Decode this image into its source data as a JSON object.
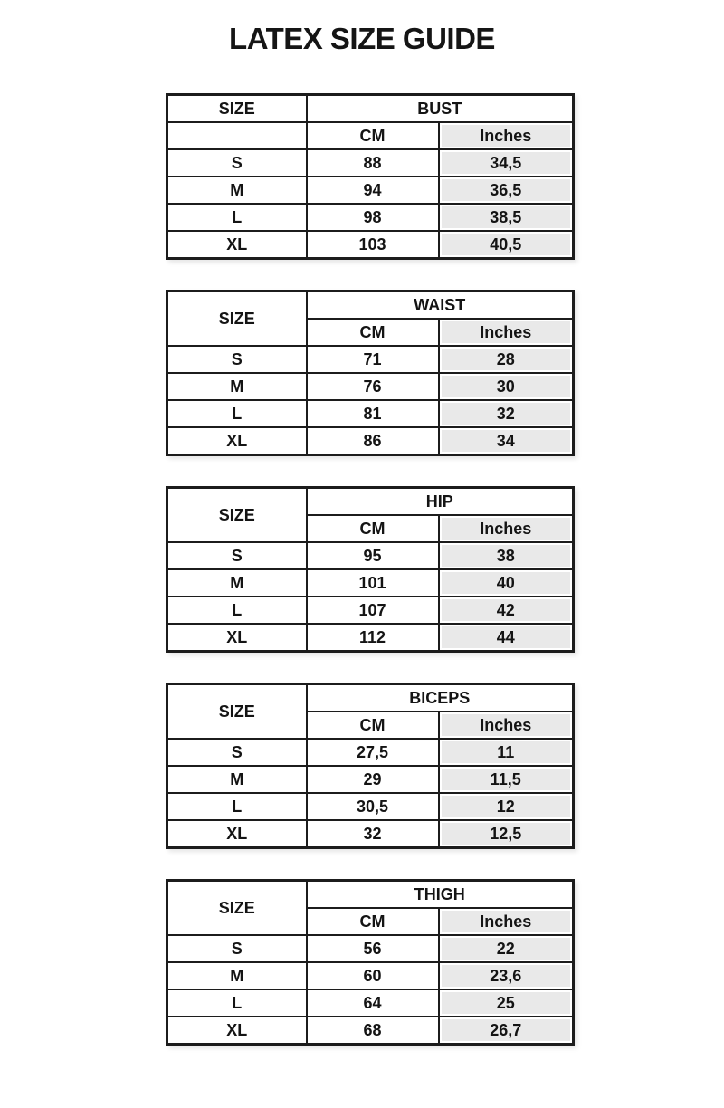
{
  "page": {
    "title": "LATEX SIZE GUIDE"
  },
  "table_labels": {
    "size": "SIZE",
    "cm": "CM",
    "inches": "Inches"
  },
  "tables": [
    {
      "measure": "BUST",
      "rows": [
        {
          "size": "S",
          "cm": "88",
          "inches": "34,5"
        },
        {
          "size": "M",
          "cm": "94",
          "inches": "36,5"
        },
        {
          "size": "L",
          "cm": "98",
          "inches": "38,5"
        },
        {
          "size": "XL",
          "cm": "103",
          "inches": "40,5"
        }
      ]
    },
    {
      "measure": "WAIST",
      "rows": [
        {
          "size": "S",
          "cm": "71",
          "inches": "28"
        },
        {
          "size": "M",
          "cm": "76",
          "inches": "30"
        },
        {
          "size": "L",
          "cm": "81",
          "inches": "32"
        },
        {
          "size": "XL",
          "cm": "86",
          "inches": "34"
        }
      ]
    },
    {
      "measure": "HIP",
      "rows": [
        {
          "size": "S",
          "cm": "95",
          "inches": "38"
        },
        {
          "size": "M",
          "cm": "101",
          "inches": "40"
        },
        {
          "size": "L",
          "cm": "107",
          "inches": "42"
        },
        {
          "size": "XL",
          "cm": "112",
          "inches": "44"
        }
      ]
    },
    {
      "measure": "BICEPS",
      "rows": [
        {
          "size": "S",
          "cm": "27,5",
          "inches": "11"
        },
        {
          "size": "M",
          "cm": "29",
          "inches": "11,5"
        },
        {
          "size": "L",
          "cm": "30,5",
          "inches": "12"
        },
        {
          "size": "XL",
          "cm": "32",
          "inches": "12,5"
        }
      ]
    },
    {
      "measure": "THIGH",
      "rows": [
        {
          "size": "S",
          "cm": "56",
          "inches": "22"
        },
        {
          "size": "M",
          "cm": "60",
          "inches": "23,6"
        },
        {
          "size": "L",
          "cm": "64",
          "inches": "25"
        },
        {
          "size": "XL",
          "cm": "68",
          "inches": "26,7"
        }
      ]
    }
  ],
  "colors": {
    "border": "#1c1c1c",
    "shaded_cell": "#e9e9e9",
    "text": "#141414",
    "background": "#ffffff"
  }
}
